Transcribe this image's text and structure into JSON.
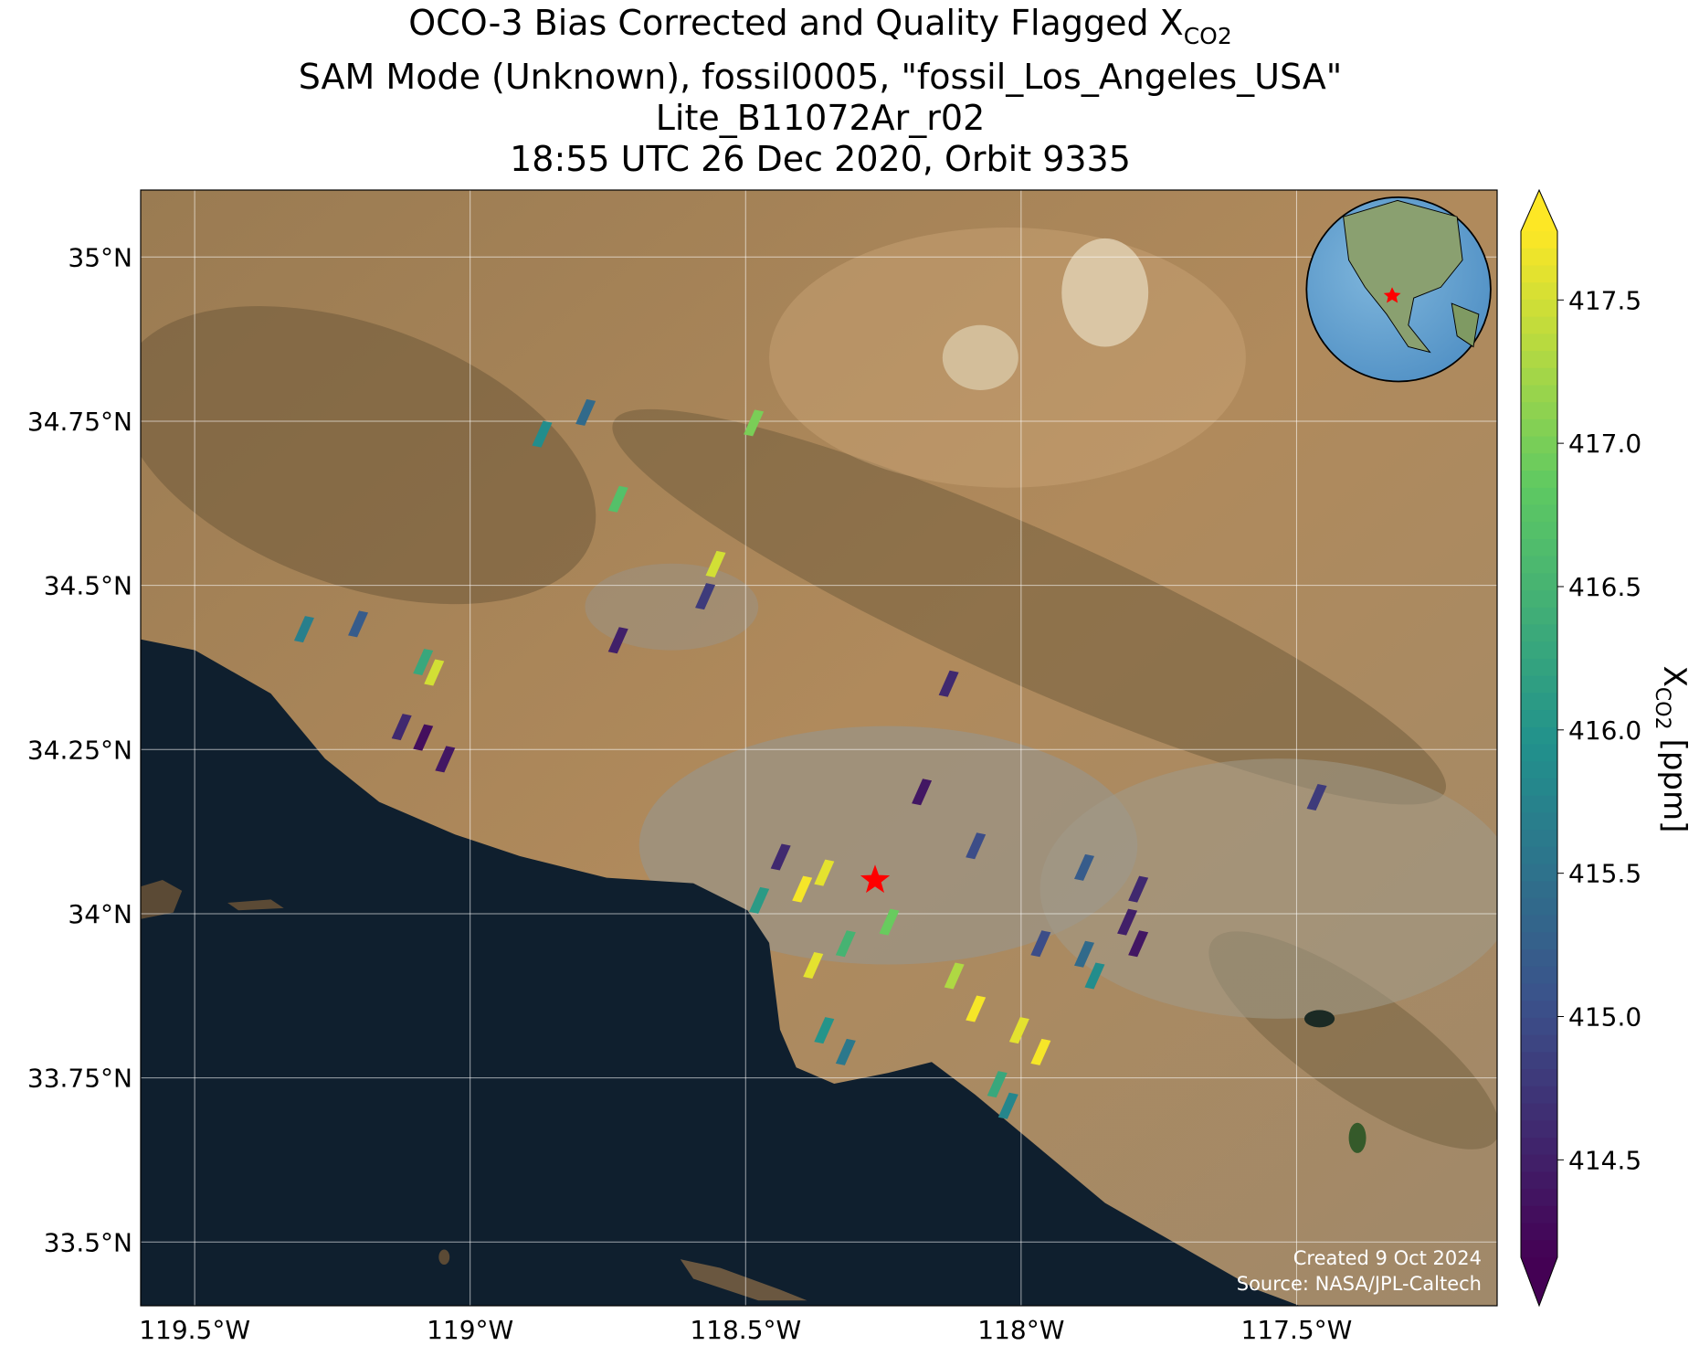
{
  "chart_data": {
    "type": "map",
    "title": "OCO-3 Bias Corrected and Quality Flagged X",
    "title_subscript": "CO2",
    "subtitle": [
      "SAM Mode (Unknown), fossil0005, \"fossil_Los_Angeles_USA\"",
      "Lite_B11072Ar_r02",
      "18:55 UTC 26 Dec 2020, Orbit 9335"
    ],
    "xlim": [
      -119.598,
      -117.136
    ],
    "ylim": [
      33.403,
      35.102
    ],
    "xticks": [
      {
        "value": -119.5,
        "label": "119.5°W"
      },
      {
        "value": -119,
        "label": "119°W"
      },
      {
        "value": -118.5,
        "label": "118.5°W"
      },
      {
        "value": -118,
        "label": "118°W"
      },
      {
        "value": -117.5,
        "label": "117.5°W"
      }
    ],
    "yticks": [
      {
        "value": 35,
        "label": "35°N"
      },
      {
        "value": 34.75,
        "label": "34.75°N"
      },
      {
        "value": 34.5,
        "label": "34.5°N"
      },
      {
        "value": 34.25,
        "label": "34.25°N"
      },
      {
        "value": 34,
        "label": "34°N"
      },
      {
        "value": 33.75,
        "label": "33.75°N"
      },
      {
        "value": 33.5,
        "label": "33.5°N"
      }
    ],
    "grid": true,
    "colorbar": {
      "label": "X",
      "label_subscript": "CO2",
      "label_units": "[ppm]",
      "vlim": [
        414.16,
        417.74
      ],
      "ticks": [
        417.5,
        {
          "value": 417.0,
          "label": "417.0"
        },
        416.5,
        {
          "value": 416.0,
          "label": "416.0"
        },
        415.5,
        {
          "value": 415.0,
          "label": "415.0"
        },
        414.5
      ],
      "colormap": "viridis"
    },
    "cells": {
      "lon": [
        -118.399,
        -118.359,
        -118.084,
        -118.005,
        -117.966,
        -118.123,
        -118.241,
        -118.32,
        -118.379,
        -118.359,
        -118.32,
        -118.045,
        -118.025,
        -117.966,
        -117.887,
        -117.809,
        -117.789,
        -117.868,
        -117.887,
        -117.789,
        -118.084,
        -118.182,
        -118.477,
        -118.438,
        -119.087,
        -119.047,
        -119.126,
        -119.067,
        -119.087,
        -119.303,
        -119.205,
        -118.871,
        -118.792,
        -118.733,
        -118.556,
        -118.575,
        -118.733,
        -118.487,
        -118.133,
        -117.465
      ],
      "lat": [
        34.038,
        34.063,
        33.856,
        33.823,
        33.79,
        33.906,
        33.988,
        33.955,
        33.922,
        33.823,
        33.79,
        33.741,
        33.708,
        33.955,
        33.939,
        33.988,
        33.955,
        33.906,
        34.071,
        34.038,
        34.104,
        34.186,
        34.021,
        34.087,
        34.269,
        34.236,
        34.285,
        34.368,
        34.384,
        34.434,
        34.442,
        34.731,
        34.764,
        34.632,
        34.533,
        34.484,
        34.417,
        34.748,
        34.351,
        34.178
      ],
      "values": [
        417.7,
        417.6,
        417.7,
        417.6,
        417.7,
        417.3,
        416.9,
        416.5,
        417.6,
        416.0,
        415.6,
        416.3,
        415.8,
        415.0,
        415.4,
        414.5,
        414.4,
        415.9,
        415.2,
        414.6,
        415.0,
        414.4,
        416.1,
        414.6,
        414.3,
        414.4,
        414.6,
        417.5,
        416.3,
        415.7,
        415.2,
        415.9,
        415.4,
        416.7,
        417.5,
        414.8,
        414.5,
        417.0,
        414.6,
        414.8
      ]
    },
    "site_marker": {
      "lon": -118.265,
      "lat": 34.051,
      "color": "#ff0000"
    },
    "credits": [
      "Created 9 Oct 2024",
      "Source: NASA/JPL-Caltech"
    ]
  }
}
